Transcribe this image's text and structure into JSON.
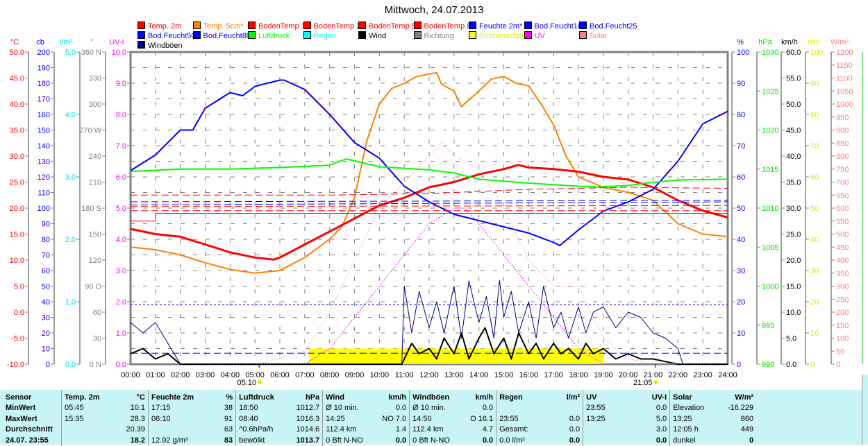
{
  "title": "Mittwoch, 24.07.2013",
  "legend": [
    {
      "label": "Temp. 2m",
      "color": "#ff0000"
    },
    {
      "label": "Temp. 5cm*",
      "color": "#ff8000"
    },
    {
      "label": "BodenTemp 10",
      "color": "#ff0000"
    },
    {
      "label": "BodenTemp 25",
      "color": "#ff0000"
    },
    {
      "label": "BodenTemp 50",
      "color": "#ff0000"
    },
    {
      "label": "BodenTemp 80",
      "color": "#ff0000"
    },
    {
      "label": "Feuchte 2m*",
      "color": "#0000ff"
    },
    {
      "label": "Bod.Feucht10",
      "color": "#0000ff"
    },
    {
      "label": "Bod.Feucht25",
      "color": "#0000ff"
    },
    {
      "label": "Bod.Feucht50",
      "color": "#0000ff"
    },
    {
      "label": "Bod.Feucht80",
      "color": "#0000ff"
    },
    {
      "label": "Luftdruck",
      "color": "#00ff00"
    },
    {
      "label": "Regen",
      "color": "#00ffff"
    },
    {
      "label": "Wind",
      "color": "#000000"
    },
    {
      "label": "Richtung",
      "color": "#808080"
    },
    {
      "label": "Sonnenschein",
      "color": "#ffff00"
    },
    {
      "label": "UV",
      "color": "#ff00ff"
    },
    {
      "label": "Solar",
      "color": "#ff8080"
    },
    {
      "label": "Windböen",
      "color": "#000080"
    }
  ],
  "chart_data": {
    "type": "line",
    "title": "Mittwoch, 24.07.2013",
    "x_ticks": [
      "00:00",
      "01:00",
      "02:00",
      "03:00",
      "04:00",
      "05:00",
      "06:00",
      "07:00",
      "08:00",
      "09:00",
      "10:00",
      "11:00",
      "12:00",
      "13:00",
      "14:00",
      "15:00",
      "16:00",
      "17:00",
      "18:00",
      "19:00",
      "20:00",
      "21:00",
      "22:00",
      "23:00",
      "24:00"
    ],
    "sunrise": "05:10",
    "sunset": "21:05",
    "axes": {
      "temp": {
        "unit": "°C",
        "color": "#ff0000",
        "min": -10,
        "max": 50,
        "labels": [
          "-10.0",
          "-5.0",
          "0.0",
          "5.0",
          "10.0",
          "15.0",
          "20.0",
          "25.0",
          "30.0",
          "35.0",
          "40.0",
          "45.0",
          "50.0"
        ]
      },
      "cb": {
        "unit": "cb",
        "color": "#0000ff",
        "min": 0,
        "max": 200,
        "labels": [
          "0",
          "10",
          "20",
          "30",
          "40",
          "50",
          "60",
          "70",
          "80",
          "90",
          "100",
          "110",
          "120",
          "130",
          "140",
          "150",
          "160",
          "170",
          "180",
          "190",
          "200"
        ]
      },
      "rain": {
        "unit": "l/m²",
        "color": "#00e0e0",
        "min": 0,
        "max": 5,
        "labels": [
          "0.0",
          "1.0",
          "2.0",
          "3.0",
          "4.0",
          "5.0"
        ]
      },
      "dir": {
        "unit": "°",
        "color": "#808080",
        "min": 0,
        "max": 360,
        "labels": [
          "0    N",
          "30",
          "60",
          "90  O",
          "120",
          "150",
          "180 S",
          "210",
          "240",
          "270 W",
          "300",
          "330",
          "360 N"
        ]
      },
      "uv": {
        "unit": "UV-I",
        "color": "#ff00ff",
        "min": 0,
        "max": 10,
        "labels": [
          "0.0",
          "1.0",
          "2.0",
          "3.0",
          "4.0",
          "5.0",
          "6.0",
          "7.0",
          "8.0",
          "9.0",
          "10.0"
        ]
      },
      "hum": {
        "unit": "%",
        "color": "#0000ff",
        "min": 0,
        "max": 100,
        "labels": [
          "0",
          "10",
          "20",
          "30",
          "40",
          "50",
          "60",
          "70",
          "80",
          "90",
          "100"
        ]
      },
      "press": {
        "unit": "hPa",
        "color": "#00e000",
        "min": 990,
        "max": 1030,
        "labels": [
          "990",
          "995",
          "1000",
          "1005",
          "1010",
          "1015",
          "1020",
          "1025",
          "1030"
        ]
      },
      "wind": {
        "unit": "km/h",
        "color": "#000000",
        "min": 0,
        "max": 60,
        "labels": [
          "0.0",
          "5.0",
          "10.0",
          "15.0",
          "20.0",
          "25.0",
          "30.0",
          "35.0",
          "40.0",
          "45.0",
          "50.0",
          "55.0",
          "60.0"
        ]
      },
      "sun": {
        "unit": "min",
        "color": "#e8e800",
        "min": 0,
        "max": 100,
        "labels": [
          "0",
          "10",
          "20",
          "30",
          "40",
          "50",
          "60",
          "70",
          "80",
          "90",
          "100"
        ]
      },
      "solar": {
        "unit": "W/m²",
        "color": "#ff8080",
        "min": 0,
        "max": 1200,
        "labels": [
          "0",
          "50",
          "100",
          "150",
          "200",
          "250",
          "300",
          "350",
          "400",
          "450",
          "500",
          "550",
          "600",
          "650",
          "700",
          "750",
          "800",
          "850",
          "900",
          "950",
          "1000",
          "1050",
          "1100",
          "1150",
          "1200"
        ]
      }
    },
    "series": [
      {
        "name": "Temp. 5cm*",
        "axis": "temp",
        "color": "#ff8000",
        "width": 2,
        "x": [
          0,
          1,
          2,
          3,
          4,
          5,
          6,
          7,
          8,
          8.5,
          9,
          9.5,
          10,
          10.5,
          11,
          11.5,
          12,
          12.3,
          12.5,
          13,
          13.3,
          14,
          14.5,
          15,
          15.5,
          16,
          16.5,
          17,
          17.5,
          18,
          19,
          20,
          21,
          22,
          23,
          24
        ],
        "y": [
          12.5,
          12,
          11,
          9.5,
          8.2,
          7.5,
          8,
          10.5,
          14,
          16.5,
          22,
          33,
          40,
          43,
          44,
          45.3,
          45.8,
          46,
          43.8,
          42.5,
          39.5,
          42.5,
          44.8,
          45.3,
          44,
          43.5,
          40,
          36,
          30,
          26,
          24,
          23,
          21.5,
          17,
          15,
          14.5
        ]
      },
      {
        "name": "Temp. 2m",
        "axis": "temp",
        "color": "#ff0000",
        "width": 3,
        "x": [
          0,
          1,
          2,
          3,
          4,
          5,
          5.75,
          6,
          7,
          8,
          9,
          10,
          11,
          12,
          13,
          14,
          15,
          15.58,
          16,
          17,
          18,
          19,
          20,
          21,
          22,
          23,
          24
        ],
        "y": [
          16,
          15,
          14.5,
          13,
          11.5,
          10.5,
          10.1,
          10.5,
          13,
          15.5,
          18,
          20.5,
          22,
          24,
          25,
          26.5,
          27.5,
          28.3,
          27.8,
          27.5,
          27,
          26,
          25.5,
          24,
          21.5,
          19.5,
          18.2
        ]
      },
      {
        "name": "Feuchte 2m*",
        "axis": "hum",
        "color": "#0000ff",
        "width": 2,
        "x": [
          0,
          1,
          2,
          2.5,
          3,
          4,
          4.5,
          5,
          6,
          6.17,
          7,
          8,
          9,
          10,
          11,
          12,
          13,
          14,
          15,
          16,
          17,
          17.25,
          18,
          19,
          20,
          21,
          22,
          23,
          24
        ],
        "y": [
          62,
          67,
          75,
          75,
          82,
          87,
          86,
          89,
          91,
          91,
          88,
          80,
          71,
          66,
          57,
          52,
          48,
          46,
          44,
          42,
          39,
          38,
          43,
          49,
          52,
          56,
          65,
          77,
          81
        ]
      },
      {
        "name": "Luftdruck",
        "axis": "press",
        "color": "#00ff00",
        "width": 2,
        "x": [
          0,
          2,
          4,
          6,
          8,
          8.67,
          10,
          12,
          13,
          14,
          16,
          18,
          18.83,
          20,
          21,
          22,
          24
        ],
        "y": [
          1014.7,
          1015,
          1015,
          1015.2,
          1015.5,
          1016.3,
          1015.3,
          1014.9,
          1014.5,
          1013.7,
          1013.2,
          1012.8,
          1012.7,
          1012.9,
          1013.3,
          1013.6,
          1013.7
        ]
      },
      {
        "name": "BodenTemp 10",
        "axis": "temp",
        "color": "#ff0000",
        "width": 1,
        "dash": "10,5",
        "x": [
          0,
          4,
          8,
          12,
          16,
          20,
          24
        ],
        "y": [
          22.5,
          22.5,
          22.5,
          22.8,
          23.6,
          24,
          23.8
        ]
      },
      {
        "name": "BodenTemp 25",
        "axis": "temp",
        "color": "#ff0000",
        "width": 1,
        "dash": "10,5",
        "x": [
          0,
          24
        ],
        "y": [
          20.3,
          20.5
        ]
      },
      {
        "name": "BodenTemp 50",
        "axis": "temp",
        "color": "#ff0000",
        "width": 1,
        "dash": "10,5",
        "x": [
          0,
          24
        ],
        "y": [
          19.5,
          19.5
        ]
      },
      {
        "name": "BodenTemp 80",
        "axis": "temp",
        "color": "#ff0000",
        "width": 1,
        "x": [
          0,
          1,
          1.01,
          24
        ],
        "y": [
          17.5,
          17.5,
          19,
          19
        ]
      },
      {
        "name": "Bod.Feucht10",
        "axis": "hum",
        "color": "#0000ff",
        "width": 1,
        "dash": "10,5",
        "x": [
          0,
          24
        ],
        "y": [
          51,
          52
        ]
      },
      {
        "name": "Bod.Feucht25",
        "axis": "hum",
        "color": "#0000ff",
        "width": 1,
        "dash": "10,5",
        "x": [
          0,
          24
        ],
        "y": [
          52,
          52.5
        ]
      },
      {
        "name": "Bod.Feucht50",
        "axis": "hum",
        "color": "#0000ff",
        "width": 1,
        "dash": "3,3",
        "x": [
          0,
          24
        ],
        "y": [
          19,
          19
        ]
      },
      {
        "name": "Bod.Feucht80",
        "axis": "hum",
        "color": "#0000ff",
        "width": 1,
        "dash": "10,5",
        "x": [
          0,
          24
        ],
        "y": [
          3.5,
          3.5
        ]
      },
      {
        "name": "Solar",
        "axis": "solar",
        "color": "#ff8080",
        "width": 1,
        "dash": "1,2",
        "x": [
          5.17,
          7,
          8,
          9,
          10,
          11,
          12,
          12.5,
          13,
          14,
          15,
          16,
          17,
          18,
          19,
          20,
          21.08
        ],
        "y": [
          0,
          50,
          200,
          400,
          600,
          700,
          800,
          850,
          800,
          750,
          600,
          400,
          300,
          300,
          100,
          20,
          0
        ]
      },
      {
        "name": "UV",
        "axis": "uv",
        "color": "#ff00ff",
        "width": 1,
        "dash": "2,2",
        "x": [
          7,
          8,
          9,
          10,
          11,
          12,
          13,
          13.42,
          14,
          15,
          16,
          17,
          18,
          19
        ],
        "y": [
          0,
          0.5,
          1.5,
          2.5,
          3.5,
          4.5,
          5,
          5,
          4.5,
          3.5,
          2.5,
          1.5,
          0.5,
          0
        ]
      },
      {
        "name": "Windböen",
        "axis": "wind",
        "color": "#000080",
        "width": 1,
        "x": [
          0,
          0.5,
          1,
          1.5,
          2,
          2.5,
          3,
          6,
          9,
          10.9,
          11,
          11.3,
          11.6,
          12,
          12.3,
          12.6,
          13,
          13.3,
          13.6,
          14,
          14.3,
          14.6,
          14.83,
          15,
          15.3,
          15.6,
          16,
          16.3,
          16.6,
          17,
          17.3,
          17.6,
          18,
          18.3,
          18.6,
          19,
          19.5,
          20,
          20.5,
          21,
          21.5,
          22,
          22.2,
          24
        ],
        "y": [
          8,
          6,
          8,
          4,
          0,
          0,
          0,
          0,
          0,
          0,
          15,
          6,
          14,
          7,
          12,
          6,
          15,
          5,
          16,
          8,
          13,
          5,
          16.1,
          9,
          14,
          6,
          12,
          5,
          15,
          7,
          10,
          5,
          11,
          6,
          10,
          11,
          7,
          10,
          9,
          6,
          5,
          3,
          0,
          0
        ]
      },
      {
        "name": "Wind",
        "axis": "wind",
        "color": "#000000",
        "width": 2,
        "x": [
          0,
          0.5,
          1,
          1.5,
          2,
          2.5,
          3,
          6,
          9,
          10.9,
          11,
          11.3,
          11.6,
          12,
          12.3,
          12.6,
          13,
          13.3,
          13.6,
          14,
          14.25,
          14.6,
          15,
          15.3,
          15.6,
          16,
          16.3,
          16.6,
          17,
          17.3,
          17.6,
          18,
          18.3,
          18.6,
          19,
          19.5,
          20,
          20.5,
          21,
          21.5,
          22,
          24
        ],
        "y": [
          2,
          3,
          1,
          2,
          0,
          0,
          0,
          0,
          0,
          0,
          1,
          4,
          2,
          3,
          1,
          5,
          2,
          6,
          1,
          5,
          7,
          2,
          5,
          1,
          6,
          2,
          4,
          1,
          4,
          2,
          3,
          1,
          4,
          2,
          3,
          1,
          2,
          1,
          1,
          0.5,
          0,
          0
        ]
      }
    ],
    "sunshine": {
      "axis": "sun",
      "color": "#ffff00",
      "from": 7.17,
      "to": 19.0,
      "value": 5
    },
    "rain": {
      "axis": "rain",
      "color": "#00ffff",
      "value": 0
    }
  },
  "table": {
    "headers": [
      "Sensor",
      "Temp. 2m",
      "°C",
      "Feuchte 2m",
      "%",
      "Luftdruck",
      "hPa",
      "Wind",
      "km/h",
      "Windböen",
      "km/h",
      "Regen",
      "l/m²",
      "UV",
      "UV-I",
      "Solar",
      "W/m²"
    ],
    "rows": [
      [
        "MinWert",
        "05:45",
        "10.1",
        "17:15",
        "38",
        "18:50",
        "1012.7",
        "Ø 10 min.",
        "0.0",
        "Ø 10 min.",
        "0.0",
        "",
        "",
        "23:55",
        "0.0",
        "Elevation",
        "-16.229"
      ],
      [
        "MaxWert",
        "15:35",
        "28.3",
        "06:10",
        "91",
        "08:40",
        "1016.3",
        "14:25",
        "NO 7.0",
        "14:50",
        "O 16.1",
        "23:55",
        "0.0",
        "13:25",
        "5.0",
        "13:25",
        "860"
      ],
      [
        "Durchschnitt",
        "",
        "20.39",
        "",
        "63",
        "^0.6hPa/h",
        "1014.6",
        "112.4 km",
        "1.4",
        "112.4 km",
        "4.7",
        "Gesamt:",
        "0.0",
        "",
        "3.0",
        "12:05 h",
        "449"
      ],
      [
        "24.07. 23:55",
        "",
        "18.2",
        "12.92 g/m³",
        "83",
        "bewölkt",
        "1013.7",
        "0 Bft N-NO",
        "0.0",
        "0 Bft N-NO",
        "0.0",
        "0.0 l/m²",
        "0.0",
        "",
        "0.0",
        "dunkel",
        "0"
      ]
    ]
  }
}
